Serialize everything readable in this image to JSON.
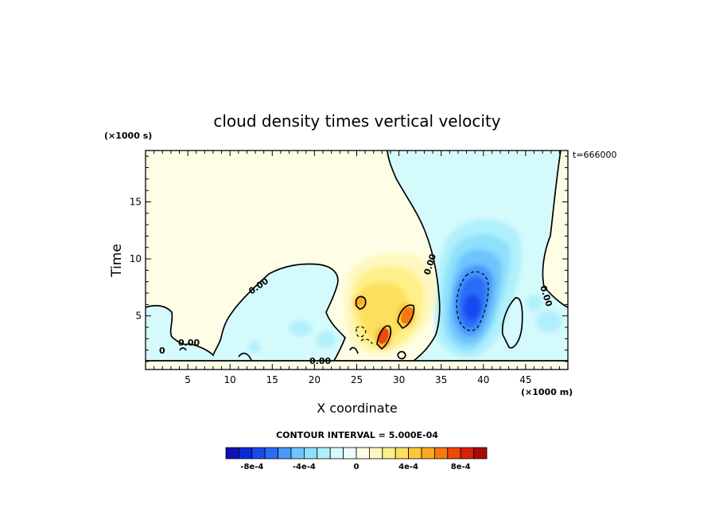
{
  "chart_data": {
    "type": "heatmap",
    "title": "cloud density times vertical velocity",
    "xlabel": "X coordinate",
    "ylabel": "Time",
    "x_units": "(×1000 m)",
    "y_units": "(×1000 s)",
    "timestamp_label": "t=666000",
    "xlim": [
      0,
      50
    ],
    "ylim": [
      0.3,
      19.5
    ],
    "x_ticks": [
      5,
      10,
      15,
      20,
      25,
      30,
      35,
      40,
      45
    ],
    "y_ticks": [
      5,
      10,
      15
    ],
    "contour_interval_label": "CONTOUR INTERVAL = 5.000E-04",
    "contour_labels": [
      "0.00",
      "0.00",
      "0.00",
      "0.00",
      "0.00",
      "0"
    ],
    "colorbar": {
      "levels": [
        -0.001,
        -0.0009,
        -0.0008,
        -0.0007,
        -0.0006,
        -0.0005,
        -0.0004,
        -0.0003,
        -0.0002,
        -0.0001,
        0,
        0.0001,
        0.0002,
        0.0003,
        0.0004,
        0.0005,
        0.0006,
        0.0007,
        0.0008,
        0.0009,
        0.001
      ],
      "colors": [
        "#1010b8",
        "#0a28d8",
        "#1848f0",
        "#2a6cf8",
        "#4a98fc",
        "#6ec4fc",
        "#8ee0fc",
        "#b0f0fc",
        "#d4fafc",
        "#eefcfc",
        "#fefee6",
        "#fef8c0",
        "#fef088",
        "#fde060",
        "#fcc838",
        "#fca820",
        "#f87810",
        "#f04808",
        "#d82008",
        "#a80c04"
      ],
      "tick_labels": [
        "-8e-4",
        "-4e-4",
        "0",
        "4e-4",
        "8e-4"
      ],
      "tick_values": [
        -0.0008,
        -0.0004,
        0,
        0.0004,
        0.0008
      ]
    }
  }
}
